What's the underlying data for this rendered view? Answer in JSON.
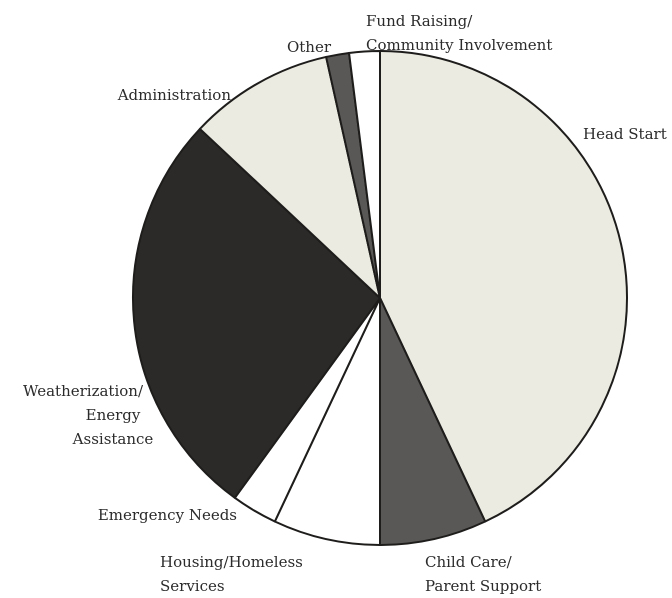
{
  "chart_data": {
    "type": "pie",
    "title": "",
    "start_angle_deg": 0,
    "direction": "clockwise",
    "slices": [
      {
        "label": "Head Start",
        "label_lines": [
          "Head Start"
        ],
        "value": 43.0,
        "color": "#ecebe1"
      },
      {
        "label": "Child Care/ Parent Support",
        "label_lines": [
          "Child Care/",
          "Parent Support"
        ],
        "value": 7.0,
        "color": "#5a5856"
      },
      {
        "label": "Housing/Homeless Services",
        "label_lines": [
          "Housing/Homeless",
          "Services"
        ],
        "value": 7.0,
        "color": "#ffffff"
      },
      {
        "label": "Emergency Needs",
        "label_lines": [
          "Emergency Needs"
        ],
        "value": 3.0,
        "color": "#ffffff"
      },
      {
        "label": "Weatherization/ Energy Assistance",
        "label_lines": [
          "Weatherization/",
          "Energy",
          "Assistance"
        ],
        "value": 27.0,
        "color": "#2c2a29"
      },
      {
        "label": "Administration",
        "label_lines": [
          "Administration"
        ],
        "value": 9.5,
        "color": "#ecebe1"
      },
      {
        "label": "Other",
        "label_lines": [
          "Other"
        ],
        "value": 1.5,
        "color": "#5a5856"
      },
      {
        "label": "Fund Raising/ Community Involvement",
        "label_lines": [
          "Fund Raising/",
          "Community Involvement"
        ],
        "value": 2.0,
        "color": "#ffffff"
      }
    ]
  }
}
